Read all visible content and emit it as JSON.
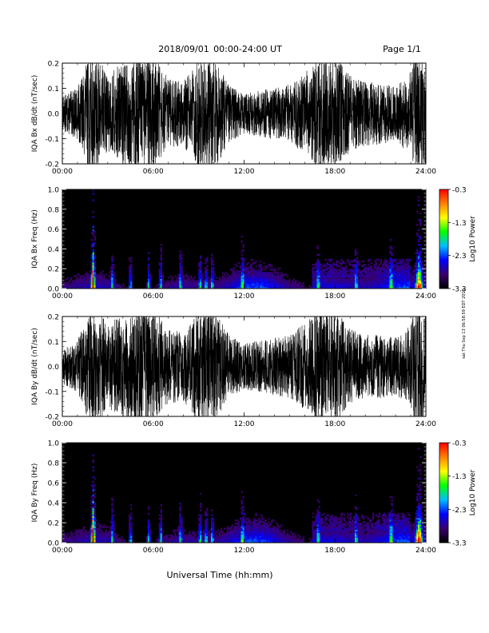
{
  "header": {
    "date": "2018/09/01",
    "time_range": "00:00-24:00 UT",
    "page": "Page 1/1"
  },
  "footer": {
    "xlabel": "Universal Time (hh:mm)"
  },
  "side_stamp": "sat Thu Sep 13 06:58:59 EDT 2018",
  "chart_data": [
    {
      "id": "bx-dbdt",
      "type": "line",
      "ylabel": "IQA Bx dB/dt (nT/sec)",
      "xlim": [
        0,
        24
      ],
      "ylim": [
        -0.2,
        0.2
      ],
      "x_ticks": [
        "00:00",
        "06:00",
        "12:00",
        "18:00",
        "24:00"
      ],
      "y_ticks": [
        "-0.2",
        "-0.1",
        "0.0",
        "0.1",
        "0.2"
      ],
      "y_tick_values": [
        -0.2,
        -0.1,
        0.0,
        0.1,
        0.2
      ],
      "envelope": {
        "hours": [
          0,
          1,
          1.8,
          2,
          2.4,
          3,
          4,
          5,
          6,
          7,
          8,
          9,
          9.8,
          10,
          11,
          12,
          13,
          14,
          15,
          16,
          17,
          18,
          19,
          20,
          21,
          22,
          22.5,
          23,
          23.2,
          23.5,
          24
        ],
        "amplitude": [
          0.06,
          0.09,
          0.2,
          0.2,
          0.2,
          0.13,
          0.18,
          0.2,
          0.2,
          0.12,
          0.11,
          0.2,
          0.2,
          0.2,
          0.1,
          0.07,
          0.08,
          0.09,
          0.1,
          0.14,
          0.2,
          0.2,
          0.13,
          0.11,
          0.11,
          0.09,
          0.12,
          0.15,
          0.2,
          0.2,
          0.2
        ]
      }
    },
    {
      "id": "bx-spectrogram",
      "type": "heatmap",
      "ylabel": "IQA Bx Freq (Hz)",
      "colorbar_label": "Log10 Power",
      "xlim": [
        0,
        24
      ],
      "ylim": [
        0,
        1.0
      ],
      "clim": [
        -3.3,
        -0.3
      ],
      "x_ticks": [
        "00:00",
        "06:00",
        "12:00",
        "18:00",
        "24:00"
      ],
      "y_ticks": [
        "0.0",
        "0.2",
        "0.4",
        "0.6",
        "0.8",
        "1.0"
      ],
      "y_tick_values": [
        0,
        0.2,
        0.4,
        0.6,
        0.8,
        1.0
      ],
      "colorbar_ticks": [
        "-0.3",
        "-1.3",
        "-2.3",
        "-3.3"
      ],
      "colorbar_tick_values": [
        -0.3,
        -1.3,
        -2.3,
        -3.3
      ],
      "colormap": [
        "#000000",
        "#3a006e",
        "#0000ff",
        "#00bfff",
        "#00ff00",
        "#ffff00",
        "#ff8000",
        "#ff0000"
      ]
    },
    {
      "id": "by-dbdt",
      "type": "line",
      "ylabel": "IQA By dB/dt (nT/sec)",
      "xlim": [
        0,
        24
      ],
      "ylim": [
        -0.2,
        0.2
      ],
      "x_ticks": [
        "00:00",
        "06:00",
        "12:00",
        "18:00",
        "24:00"
      ],
      "y_ticks": [
        "-0.2",
        "-0.1",
        "0.0",
        "0.1",
        "0.2"
      ],
      "y_tick_values": [
        -0.2,
        -0.1,
        0.0,
        0.1,
        0.2
      ],
      "envelope": {
        "hours": [
          0,
          1,
          1.8,
          2,
          2.4,
          3,
          4,
          5,
          6,
          7,
          8,
          9,
          9.8,
          10,
          11,
          12,
          13,
          14,
          15,
          16,
          17,
          18,
          19,
          20,
          21,
          22,
          22.5,
          23,
          23.2,
          23.5,
          24
        ],
        "amplitude": [
          0.06,
          0.09,
          0.2,
          0.2,
          0.2,
          0.14,
          0.19,
          0.2,
          0.2,
          0.13,
          0.12,
          0.2,
          0.2,
          0.2,
          0.11,
          0.08,
          0.09,
          0.1,
          0.11,
          0.15,
          0.2,
          0.2,
          0.13,
          0.11,
          0.11,
          0.1,
          0.12,
          0.15,
          0.2,
          0.2,
          0.2
        ]
      }
    },
    {
      "id": "by-spectrogram",
      "type": "heatmap",
      "ylabel": "IQA By Freq (Hz)",
      "colorbar_label": "Log10 Power",
      "xlim": [
        0,
        24
      ],
      "ylim": [
        0,
        1.0
      ],
      "clim": [
        -3.3,
        -0.3
      ],
      "x_ticks": [
        "00:00",
        "06:00",
        "12:00",
        "18:00",
        "24:00"
      ],
      "y_ticks": [
        "0.0",
        "0.2",
        "0.4",
        "0.6",
        "0.8",
        "1.0"
      ],
      "y_tick_values": [
        0,
        0.2,
        0.4,
        0.6,
        0.8,
        1.0
      ],
      "colorbar_ticks": [
        "-0.3",
        "-1.3",
        "-2.3",
        "-3.3"
      ],
      "colorbar_tick_values": [
        -0.3,
        -1.3,
        -2.3,
        -3.3
      ],
      "colormap": [
        "#000000",
        "#3a006e",
        "#0000ff",
        "#00bfff",
        "#00ff00",
        "#ffff00",
        "#ff8000",
        "#ff0000"
      ]
    }
  ]
}
